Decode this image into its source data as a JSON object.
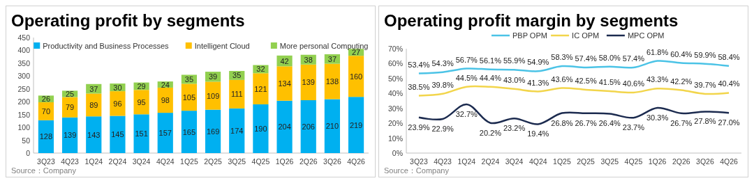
{
  "chart_data": [
    {
      "type": "bar",
      "title": "Operating profit by segments",
      "stacked": true,
      "data_labels": true,
      "legend": "top",
      "categories": [
        "3Q23",
        "4Q23",
        "1Q24",
        "2Q24",
        "3Q24",
        "4Q24",
        "1Q25",
        "2Q25",
        "3Q25",
        "4Q25",
        "1Q26",
        "2Q26",
        "3Q26",
        "4Q26"
      ],
      "series": [
        {
          "name": "Productivity and Business Processes",
          "color": "#00b0f0",
          "values": [
            128,
            139,
            143,
            145,
            151,
            157,
            165,
            169,
            174,
            190,
            204,
            206,
            210,
            219
          ]
        },
        {
          "name": "Intelligent Cloud",
          "color": "#ffc000",
          "values": [
            70,
            79,
            89,
            96,
            95,
            98,
            105,
            109,
            111,
            121,
            134,
            139,
            138,
            160
          ]
        },
        {
          "name": "More personal Computing",
          "color": "#92d050",
          "values": [
            26,
            25,
            37,
            30,
            29,
            24,
            35,
            39,
            35,
            32,
            42,
            38,
            37,
            27
          ]
        }
      ],
      "ylim": [
        0,
        450
      ],
      "yticks": [
        0,
        50,
        100,
        150,
        200,
        250,
        300,
        350,
        400,
        450
      ],
      "annotations": [
        "Source：Company"
      ]
    },
    {
      "type": "line",
      "title": "Operating profit margin by segments",
      "legend": "top",
      "categories": [
        "3Q23",
        "4Q23",
        "1Q24",
        "2Q24",
        "3Q24",
        "4Q24",
        "1Q25",
        "2Q25",
        "3Q25",
        "4Q25",
        "1Q26",
        "2Q26",
        "3Q26",
        "4Q26"
      ],
      "series": [
        {
          "name": "PBP OPM",
          "color": "#4bc3e6",
          "values": [
            53.4,
            54.3,
            56.7,
            56.1,
            55.9,
            54.9,
            58.3,
            57.4,
            58.0,
            57.4,
            61.8,
            60.4,
            59.9,
            58.4
          ],
          "value_labels": [
            "53.4%",
            "54.3%",
            "56.7%",
            "56.1%",
            "55.9%",
            "54.9%",
            "58.3%",
            "57.4%",
            "58.0%",
            "57.4%",
            "61.8%",
            "60.4%",
            "59.9%",
            "58.4%"
          ]
        },
        {
          "name": "IC OPM",
          "color": "#f2d54b",
          "values": [
            38.5,
            39.8,
            44.5,
            44.4,
            43.0,
            41.3,
            43.6,
            42.5,
            41.5,
            40.6,
            43.3,
            42.2,
            39.7,
            40.4
          ],
          "value_labels": [
            "38.5%",
            "39.8%",
            "44.5%",
            "44.4%",
            "43.0%",
            "41.3%",
            "43.6%",
            "42.5%",
            "41.5%",
            "40.6%",
            "43.3%",
            "42.2%",
            "39.7%",
            "40.4%"
          ]
        },
        {
          "name": "MPC OPM",
          "color": "#1c2b4f",
          "values": [
            23.9,
            22.9,
            32.7,
            20.2,
            23.2,
            19.4,
            26.8,
            26.7,
            26.4,
            23.7,
            30.3,
            26.7,
            27.8,
            27.0
          ],
          "value_labels": [
            "23.9%",
            "22.9%",
            "32.7%",
            "20.2%",
            "23.2%",
            "19.4%",
            "26.8%",
            "26.7%",
            "26.4%",
            "23.7%",
            "30.3%",
            "26.7%",
            "27.8%",
            "27.0%"
          ]
        }
      ],
      "ylim": [
        0,
        70
      ],
      "yticks": [
        {
          "value": 0,
          "label": "0%"
        },
        {
          "value": 10,
          "label": "10%"
        },
        {
          "value": 20,
          "label": "20%"
        },
        {
          "value": 30,
          "label": "30%"
        },
        {
          "value": 40,
          "label": "40%"
        },
        {
          "value": 50,
          "label": "50%"
        },
        {
          "value": 60,
          "label": "60%"
        },
        {
          "value": 70,
          "label": "70%"
        }
      ],
      "annotations": [
        "Source：Company"
      ]
    }
  ]
}
